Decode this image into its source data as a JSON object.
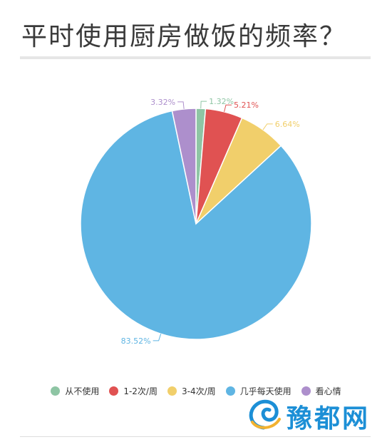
{
  "page": {
    "title": "平时使用厨房做饭的频率？"
  },
  "watermark": {
    "text": "豫都网"
  },
  "chart_data": {
    "type": "pie",
    "title": "平时使用厨房做饭的频率？",
    "legend_position": "bottom",
    "slices": [
      {
        "name": "从不使用",
        "value": 1.32,
        "label": "1.32%",
        "color": "#8ec5a4"
      },
      {
        "name": "1-2次/周",
        "value": 5.21,
        "label": "5.21%",
        "color": "#e05252"
      },
      {
        "name": "3-4次/周",
        "value": 6.64,
        "label": "6.64%",
        "color": "#f1cf6b"
      },
      {
        "name": "几乎每天使用",
        "value": 83.52,
        "label": "83.52%",
        "color": "#5fb5e3"
      },
      {
        "name": "看心情",
        "value": 3.32,
        "label": "3.32%",
        "color": "#ad8fcc"
      }
    ]
  }
}
